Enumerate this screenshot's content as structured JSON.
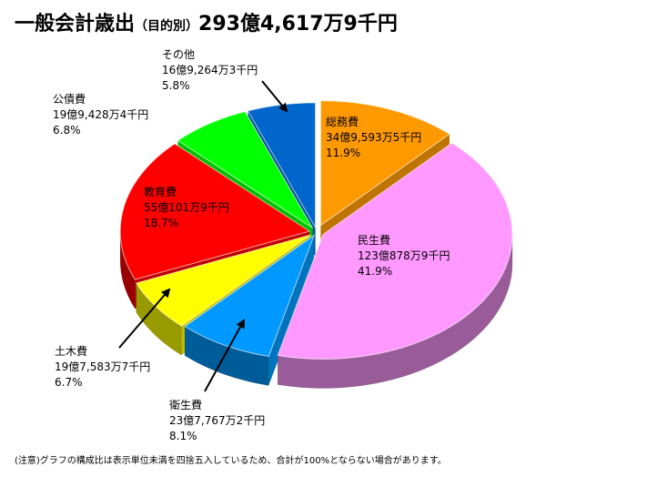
{
  "title": {
    "main": "一般会計歳出",
    "sub": "（目的別）",
    "total": "293億4,617万9千円"
  },
  "note": "(注意)グラフの構成比は表示単位未満を四捨五入しているため、合計が100%とならない場合があります。",
  "colors": {
    "soumu": "#ff9900",
    "minsei": "#ff99ff",
    "eisei": "#0099ff",
    "doboku": "#ffff00",
    "kyoiku": "#ff0000",
    "kosai": "#00ff00",
    "sonota": "#0066cc"
  },
  "chart_data": {
    "type": "pie",
    "title": "一般会計歳出（目的別）293億4,617万9千円",
    "series": [
      {
        "key": "soumu",
        "name": "総務費",
        "amount": "34億9,593万5千円",
        "percent": 11.9,
        "percent_label": "11.9%"
      },
      {
        "key": "minsei",
        "name": "民生費",
        "amount": "123億878万9千円",
        "percent": 41.9,
        "percent_label": "41.9%"
      },
      {
        "key": "eisei",
        "name": "衛生費",
        "amount": "23億7,767万2千円",
        "percent": 8.1,
        "percent_label": "8.1%"
      },
      {
        "key": "doboku",
        "name": "土木費",
        "amount": "19億7,583万7千円",
        "percent": 6.7,
        "percent_label": "6.7%"
      },
      {
        "key": "kyoiku",
        "name": "教育費",
        "amount": "55億101万9千円",
        "percent": 18.7,
        "percent_label": "18.7%"
      },
      {
        "key": "kosai",
        "name": "公債費",
        "amount": "19億9,428万4千円",
        "percent": 6.8,
        "percent_label": "6.8%"
      },
      {
        "key": "sonota",
        "name": "その他",
        "amount": "16億9,264万3千円",
        "percent": 5.8,
        "percent_label": "5.8%"
      }
    ]
  }
}
